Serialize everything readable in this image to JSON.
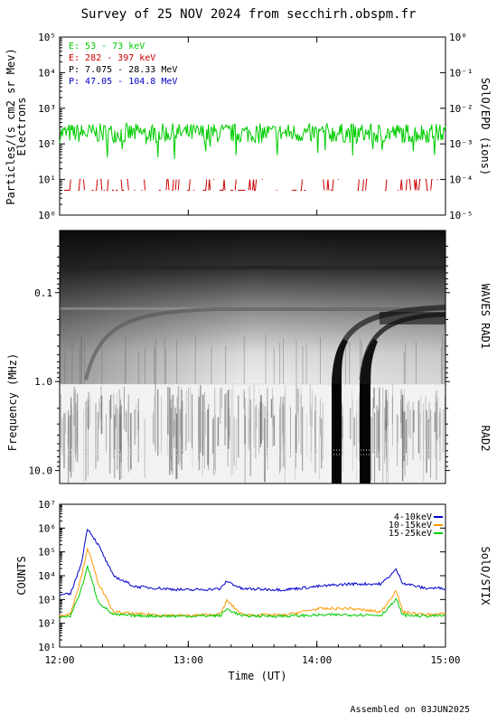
{
  "header": {
    "title": "Survey of 25 NOV 2024 from secchirh.obspm.fr"
  },
  "footer": {
    "text": "Assembled on 03JUN2025"
  },
  "colors": {
    "green": "#00cc00",
    "red": "#cc0000",
    "black": "#000000",
    "blue": "#0000cc",
    "stix_low": "#0000cc",
    "stix_mid": "#ff9900",
    "stix_high": "#00cc00"
  },
  "chart_data": [
    {
      "type": "line",
      "name": "SolO/EPD",
      "ylabel": "Particles/(s cm2 sr Mev)",
      "ylabel2": "Electrons",
      "right_label": "SolO/EPD (ions)",
      "y_scale": "log",
      "ylim": [
        1,
        100000
      ],
      "y2lim": [
        1e-05,
        1
      ],
      "y_ticks": [
        "10⁰",
        "10¹",
        "10²",
        "10³",
        "10⁴",
        "10⁵"
      ],
      "y2_ticks": [
        "10⁻⁵",
        "10⁻⁴",
        "10⁻³",
        "10⁻²",
        "10⁻¹",
        "10⁰"
      ],
      "xlim": [
        "12:00",
        "15:00"
      ],
      "legend": [
        {
          "label": "E: 53 - 73 keV",
          "color": "#00cc00"
        },
        {
          "label": "E: 282 - 397 keV",
          "color": "#cc0000"
        },
        {
          "label": "P: 7.075 - 28.33 MeV",
          "color": "#000000"
        },
        {
          "label": "P: 47.05 - 104.8 MeV",
          "color": "#0000cc"
        }
      ],
      "series": [
        {
          "name": "E: 53 - 73 keV",
          "level": 200
        },
        {
          "name": "E: 282 - 397 keV",
          "level": 5
        }
      ]
    },
    {
      "type": "heatmap",
      "name": "WAVES RAD1 / RAD2 spectrogram",
      "ylabel": "Frequency (MHz)",
      "y_scale": "log",
      "ylim": [
        0.02,
        14
      ],
      "y_ticks": [
        "0.1",
        "1.0",
        "10.0"
      ],
      "right_labels": [
        "WAVES RAD1",
        "RAD2"
      ],
      "xlim": [
        "12:00",
        "15:00"
      ]
    },
    {
      "type": "line",
      "name": "SolO/STIX",
      "ylabel": "COUNTS",
      "right_label": "SolO/STIX",
      "y_scale": "log",
      "ylim": [
        10,
        10000000
      ],
      "y_ticks": [
        "10¹",
        "10²",
        "10³",
        "10⁴",
        "10⁵",
        "10⁶",
        "10⁷"
      ],
      "x_ticks": [
        "12:00",
        "13:00",
        "14:00",
        "15:00"
      ],
      "xlabel": "Time (UT)",
      "legend": [
        {
          "label": "4-10keV",
          "color": "#0000cc"
        },
        {
          "label": "10-15keV",
          "color": "#ff9900"
        },
        {
          "label": "15-25keV",
          "color": "#00cc00"
        }
      ],
      "series": [
        {
          "name": "4-10keV",
          "x": [
            "12:00",
            "12:05",
            "12:10",
            "12:13",
            "12:18",
            "12:25",
            "12:35",
            "12:50",
            "13:00",
            "13:15",
            "13:18",
            "13:25",
            "13:45",
            "14:00",
            "14:15",
            "14:30",
            "14:37",
            "14:40",
            "14:50",
            "15:00"
          ],
          "values": [
            1500,
            1700,
            30000,
            1000000,
            200000,
            10000,
            3500,
            2800,
            2500,
            2800,
            6000,
            2800,
            2600,
            3500,
            4500,
            4500,
            18000,
            5000,
            3000,
            3000
          ]
        },
        {
          "name": "10-15keV",
          "x": [
            "12:00",
            "12:05",
            "12:10",
            "12:13",
            "12:18",
            "12:25",
            "12:35",
            "12:50",
            "13:00",
            "13:15",
            "13:18",
            "13:25",
            "13:45",
            "14:00",
            "14:15",
            "14:30",
            "14:37",
            "14:40",
            "14:50",
            "15:00"
          ],
          "values": [
            200,
            250,
            8000,
            150000,
            5000,
            300,
            250,
            220,
            210,
            240,
            900,
            230,
            220,
            400,
            420,
            300,
            2500,
            300,
            230,
            250
          ]
        },
        {
          "name": "15-25keV",
          "x": [
            "12:00",
            "12:05",
            "12:10",
            "12:13",
            "12:18",
            "12:25",
            "12:35",
            "12:50",
            "13:00",
            "13:15",
            "13:18",
            "13:25",
            "13:45",
            "14:00",
            "14:15",
            "14:30",
            "14:37",
            "14:40",
            "14:50",
            "15:00"
          ],
          "values": [
            180,
            200,
            2500,
            25000,
            800,
            230,
            210,
            200,
            200,
            210,
            400,
            205,
            200,
            220,
            230,
            220,
            1000,
            220,
            200,
            210
          ]
        }
      ]
    }
  ]
}
